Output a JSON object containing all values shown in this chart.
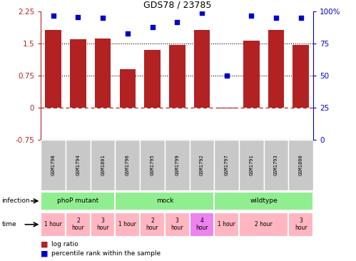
{
  "title": "GDS78 / 23785",
  "samples": [
    "GSM1798",
    "GSM1794",
    "GSM1801",
    "GSM1796",
    "GSM1795",
    "GSM1799",
    "GSM1792",
    "GSM1797",
    "GSM1791",
    "GSM1793",
    "GSM1800"
  ],
  "log_ratio": [
    1.83,
    1.61,
    1.62,
    0.9,
    1.35,
    1.47,
    1.83,
    -0.02,
    1.57,
    1.83,
    1.47
  ],
  "percentile": [
    97,
    96,
    95,
    83,
    88,
    92,
    99,
    50,
    97,
    95,
    95
  ],
  "ylim_left": [
    -0.75,
    2.25
  ],
  "ylim_right": [
    0,
    100
  ],
  "yticks_left": [
    -0.75,
    0,
    0.75,
    1.5,
    2.25
  ],
  "yticks_right": [
    0,
    25,
    50,
    75,
    100
  ],
  "bar_color": "#B22222",
  "dot_color": "#0000CD",
  "infection_groups": [
    {
      "label": "phoP mutant",
      "start": 0,
      "end": 3
    },
    {
      "label": "mock",
      "start": 3,
      "end": 7
    },
    {
      "label": "wildtype",
      "start": 7,
      "end": 11
    }
  ],
  "time_spans": [
    {
      "start": 0,
      "end": 1,
      "label": "1 hour",
      "color": "#FFB6C1"
    },
    {
      "start": 1,
      "end": 2,
      "label": "2\nhour",
      "color": "#FFB6C1"
    },
    {
      "start": 2,
      "end": 3,
      "label": "3\nhour",
      "color": "#FFB6C1"
    },
    {
      "start": 3,
      "end": 4,
      "label": "1 hour",
      "color": "#FFB6C1"
    },
    {
      "start": 4,
      "end": 5,
      "label": "2\nhour",
      "color": "#FFB6C1"
    },
    {
      "start": 5,
      "end": 6,
      "label": "3\nhour",
      "color": "#FFB6C1"
    },
    {
      "start": 6,
      "end": 7,
      "label": "4\nhour",
      "color": "#EE82EE"
    },
    {
      "start": 7,
      "end": 8,
      "label": "1 hour",
      "color": "#FFB6C1"
    },
    {
      "start": 8,
      "end": 10,
      "label": "2 hour",
      "color": "#FFB6C1"
    },
    {
      "start": 10,
      "end": 11,
      "label": "3\nhour",
      "color": "#FFB6C1"
    }
  ],
  "legend_red": "log ratio",
  "legend_blue": "percentile rank within the sample",
  "infection_color": "#90EE90",
  "gsm_bg_color": "#C8C8C8"
}
